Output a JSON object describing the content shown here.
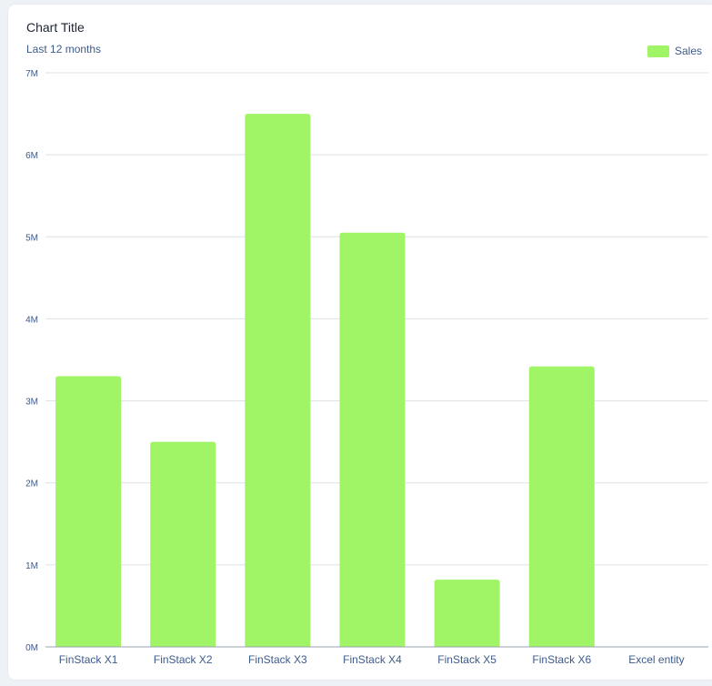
{
  "title": "Chart Title",
  "subtitle": "Last 12 months",
  "colors": {
    "bar": "#a0f566",
    "grid": "#dde1e6",
    "axis": "#9aa3ad",
    "label": "#3e5a8a"
  },
  "chart_data": {
    "type": "bar",
    "title": "Chart Title",
    "subtitle": "Last 12 months",
    "categories": [
      "FinStack X1",
      "FinStack X2",
      "FinStack X3",
      "FinStack X4",
      "FinStack X5",
      "FinStack X6",
      "Excel entity"
    ],
    "series": [
      {
        "name": "Sales",
        "values": [
          3300000,
          2500000,
          6500000,
          5050000,
          820000,
          3420000,
          0
        ]
      }
    ],
    "ylim": [
      0,
      7000000
    ],
    "yticks": [
      0,
      1000000,
      2000000,
      3000000,
      4000000,
      5000000,
      6000000,
      7000000
    ],
    "ytick_labels": [
      "0M",
      "1M",
      "2M",
      "3M",
      "4M",
      "5M",
      "6M",
      "7M"
    ],
    "grid": true,
    "legend_position": "top-right"
  }
}
